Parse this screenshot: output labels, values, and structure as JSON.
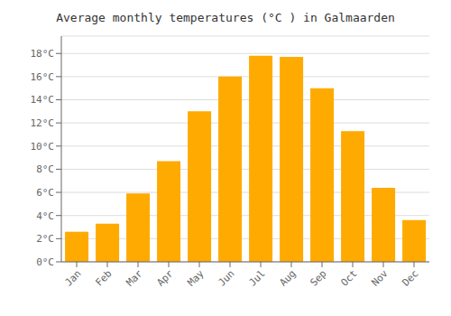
{
  "chart_data": {
    "type": "bar",
    "title": "Average monthly temperatures (°C ) in Galmaarden",
    "categories": [
      "Jan",
      "Feb",
      "Mar",
      "Apr",
      "May",
      "Jun",
      "Jul",
      "Aug",
      "Sep",
      "Oct",
      "Nov",
      "Dec"
    ],
    "values": [
      2.6,
      3.3,
      5.9,
      8.7,
      13.0,
      16.0,
      17.8,
      17.7,
      15.0,
      11.3,
      6.4,
      3.6
    ],
    "color": "#FFAA00",
    "ylim": [
      0,
      19.5
    ],
    "yticks": [
      {
        "value": 0,
        "label": "0°C"
      },
      {
        "value": 2,
        "label": "2°C"
      },
      {
        "value": 4,
        "label": "4°C"
      },
      {
        "value": 6,
        "label": "6°C"
      },
      {
        "value": 8,
        "label": "8°C"
      },
      {
        "value": 10,
        "label": "10°C"
      },
      {
        "value": 12,
        "label": "12°C"
      },
      {
        "value": 14,
        "label": "14°C"
      },
      {
        "value": 16,
        "label": "16°C"
      },
      {
        "value": 18,
        "label": "18°C"
      }
    ],
    "grid": true
  }
}
